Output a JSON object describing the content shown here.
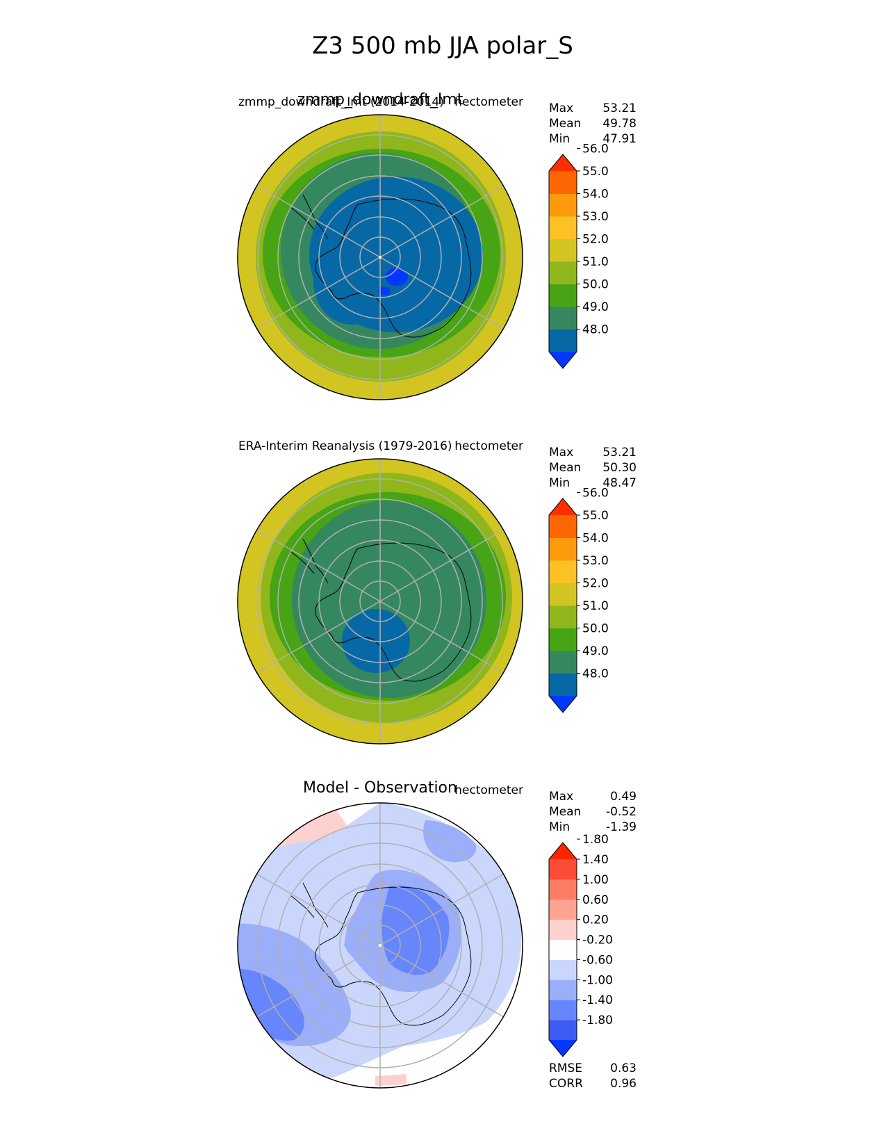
{
  "figure": {
    "title": "Z3 500 mb JJA polar_S"
  },
  "chart_data": [
    {
      "type": "heatmap",
      "projection": "south polar stereographic",
      "title": "zmmp_downdraft_Imt",
      "left_label": "zmmp_downdraft_Imt (2014-2014)",
      "units": "hectometer",
      "stats": {
        "labels": [
          "Max",
          "Mean",
          "Min"
        ],
        "values": [
          "53.21",
          "49.78",
          "47.91"
        ]
      },
      "colorbar": {
        "ticks": [
          "48.0",
          "49.0",
          "50.0",
          "51.0",
          "52.0",
          "53.0",
          "54.0",
          "55.0",
          "56.0"
        ],
        "colors": [
          "#0437ff",
          "#0668a5",
          "#358760",
          "#47a414",
          "#8fb71b",
          "#d2c521",
          "#fcc124",
          "#fd9a0c",
          "#fe6602",
          "#fe3000"
        ],
        "extend": "both"
      },
      "field": {
        "center": 48.6,
        "levels": [
          {
            "value": 52.5,
            "max_colatitude_deg": 55
          },
          {
            "value": 51.5,
            "max_colatitude_deg": 47
          },
          {
            "value": 50.5,
            "max_colatitude_deg": 40
          },
          {
            "value": 49.5,
            "max_colatitude_deg": 30
          },
          {
            "value": 47.9,
            "max_colatitude_deg": 4
          }
        ]
      }
    },
    {
      "type": "heatmap",
      "projection": "south polar stereographic",
      "title": "",
      "left_label": "ERA-Interim Reanalysis (1979-2016)",
      "units": "hectometer",
      "stats": {
        "labels": [
          "Max",
          "Mean",
          "Min"
        ],
        "values": [
          "53.21",
          "50.30",
          "48.47"
        ]
      },
      "colorbar": {
        "ticks": [
          "48.0",
          "49.0",
          "50.0",
          "51.0",
          "52.0",
          "53.0",
          "54.0",
          "55.0",
          "56.0"
        ],
        "colors": [
          "#0437ff",
          "#0668a5",
          "#358760",
          "#47a414",
          "#8fb71b",
          "#d2c521",
          "#fcc124",
          "#fd9a0c",
          "#fe6602",
          "#fe3000"
        ],
        "extend": "both"
      },
      "field": {
        "center": 49.6,
        "levels": [
          {
            "value": 52.5,
            "max_colatitude_deg": 55
          },
          {
            "value": 51.5,
            "max_colatitude_deg": 46
          },
          {
            "value": 50.5,
            "max_colatitude_deg": 38
          },
          {
            "value": 48.8,
            "max_colatitude_deg": 11
          }
        ]
      }
    },
    {
      "type": "heatmap",
      "projection": "south polar stereographic",
      "title": "Model - Observation",
      "left_label": "",
      "units": "hectometer",
      "stats": {
        "labels": [
          "Max",
          "Mean",
          "Min"
        ],
        "values": [
          "0.49",
          "-0.52",
          "-1.39"
        ]
      },
      "colorbar": {
        "ticks": [
          "-1.80",
          "-1.40",
          "-1.00",
          "-0.60",
          "-0.20",
          "0.20",
          "0.60",
          "1.00",
          "1.40",
          "1.80"
        ],
        "colors": [
          "#0437ff",
          "#3e5cf2",
          "#6786fb",
          "#9aaefa",
          "#cbd6fd",
          "#fefefe",
          "#fed1cf",
          "#fda493",
          "#fd7c64",
          "#fd4c36",
          "#fe2400"
        ],
        "extend": "both"
      },
      "field": {
        "range": [
          -1.39,
          0.49
        ],
        "mean": -0.52
      },
      "metrics": {
        "labels": [
          "RMSE",
          "CORR"
        ],
        "values": [
          "0.63",
          "0.96"
        ]
      }
    }
  ]
}
